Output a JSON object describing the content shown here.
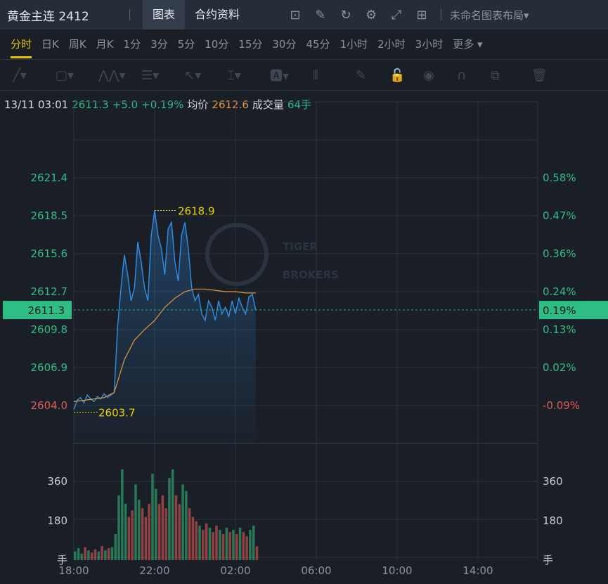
{
  "header": {
    "title": "黄金主连 2412",
    "tabs": [
      "图表",
      "合约资料"
    ],
    "icons": [
      "chart-icon",
      "edit-icon",
      "refresh-icon",
      "gear-icon",
      "fullscreen-icon",
      "grid-icon"
    ],
    "layout_label": "未命名图表布局▾"
  },
  "periods": {
    "items": [
      "分时",
      "日K",
      "周K",
      "月K",
      "1分",
      "3分",
      "5分",
      "10分",
      "15分",
      "30分",
      "45分",
      "1小时",
      "2小时",
      "3小时",
      "更多 ▾"
    ],
    "active": 0
  },
  "draw_tools": [
    "line-tool-icon",
    "rectangle-tool-icon",
    "pattern-tool-icon",
    "fib-tool-icon",
    "arrow-tool-icon",
    "measure-tool-icon",
    "text-tool-icon",
    "candle-tool-icon",
    "pencil-icon",
    "unlock-icon",
    "eye-icon",
    "magnet-icon",
    "layers-icon",
    "trash-icon"
  ],
  "info": {
    "time": "13/11 03:01",
    "price": "2611.3",
    "change": "+5.0",
    "pct": "+0.19%",
    "avg_label": "均价",
    "avg": "2612.6",
    "vol_label": "成交量",
    "vol": "64手"
  },
  "watermark": "TIGER BROKERS",
  "colors": {
    "up": "#2ebd85",
    "down": "#e05c5c",
    "price_line": "#2e8fe8",
    "avg_line": "#e8973a",
    "highlight": "#e8d400"
  },
  "chart_data": {
    "type": "line",
    "x_ticks": [
      "18:00",
      "22:00",
      "02:00",
      "06:00",
      "10:00",
      "14:00"
    ],
    "y_ticks_left": [
      "2621.4",
      "2618.5",
      "2615.6",
      "2612.7",
      "2609.8",
      "2606.9",
      "2604.0"
    ],
    "y_ticks_right": [
      "0.58%",
      "0.47%",
      "0.36%",
      "0.24%",
      "0.13%",
      "0.02%",
      "-0.09%"
    ],
    "ylim": [
      2604.0,
      2621.4
    ],
    "current_price": "2611.3",
    "current_pct": "0.19%",
    "high_label": "2618.9",
    "low_label": "2603.7",
    "price_interval_min": 10,
    "price": [
      2603.7,
      2604.4,
      2604.6,
      2604.2,
      2604.8,
      2604.5,
      2604.3,
      2604.7,
      2604.5,
      2604.9,
      2604.6,
      2604.8,
      2605,
      2610,
      2613,
      2615.5,
      2614,
      2612,
      2613,
      2616.5,
      2615,
      2613,
      2612,
      2617,
      2618.9,
      2617,
      2616,
      2614,
      2617.5,
      2618,
      2615,
      2613.5,
      2617,
      2618,
      2616,
      2613,
      2612,
      2612.5,
      2611,
      2610.5,
      2612,
      2611.5,
      2610.5,
      2612,
      2611,
      2611.5,
      2610.8,
      2612,
      2611,
      2612.2,
      2611.5,
      2611,
      2612.3,
      2612.5,
      2611.3
    ],
    "avg_interval_min": 30,
    "avg": [
      2604.3,
      2604.4,
      2604.5,
      2604.6,
      2605,
      2607.5,
      2609,
      2609.8,
      2610.5,
      2611.5,
      2612.2,
      2612.7,
      2612.9,
      2612.9,
      2612.8,
      2612.7,
      2612.7,
      2612.6,
      2612.6
    ],
    "volume_ticks": [
      "360",
      "180"
    ],
    "volume_unit": "手",
    "volume_max": 540,
    "volume": [
      40,
      55,
      30,
      60,
      45,
      35,
      50,
      40,
      65,
      45,
      55,
      60,
      120,
      300,
      420,
      260,
      200,
      230,
      350,
      280,
      240,
      200,
      260,
      400,
      330,
      260,
      300,
      240,
      380,
      420,
      300,
      260,
      350,
      320,
      240,
      200,
      180,
      160,
      140,
      170,
      150,
      130,
      160,
      140,
      120,
      150,
      130,
      140,
      120,
      150,
      130,
      110,
      140,
      160,
      64
    ]
  }
}
